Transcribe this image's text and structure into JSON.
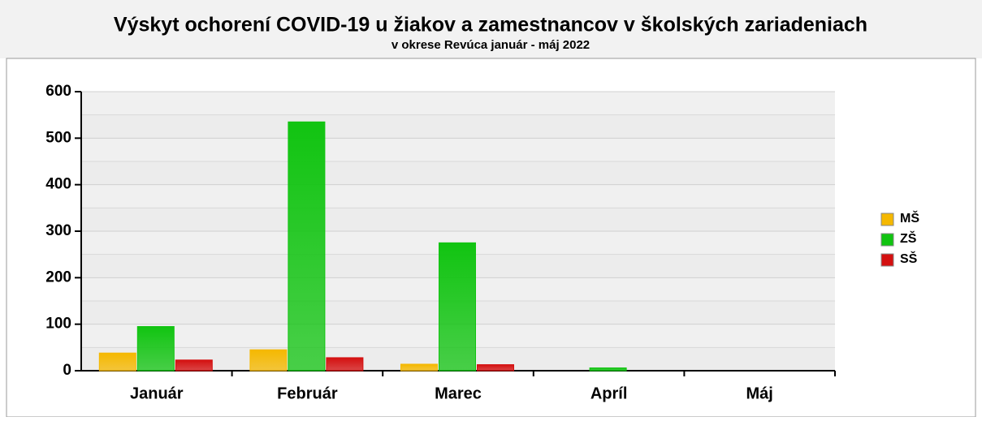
{
  "chart_data": {
    "type": "bar",
    "title": "Výskyt ochorení COVID-19 u žiakov a zamestnancov v školských zariadeniach",
    "subtitle": "v okrese Revúca január - máj 2022",
    "categories": [
      "Január",
      "Február",
      "Marec",
      "Apríl",
      "Máj"
    ],
    "series": [
      {
        "name": "MŠ",
        "color": "#f5b800",
        "values": [
          38,
          45,
          14,
          0,
          0
        ]
      },
      {
        "name": "ZŠ",
        "color": "#11c411",
        "values": [
          95,
          535,
          275,
          6,
          0
        ]
      },
      {
        "name": "SŠ",
        "color": "#d41010",
        "values": [
          23,
          28,
          13,
          0,
          0
        ]
      }
    ],
    "ylim": [
      0,
      600
    ],
    "yticks": [
      0,
      100,
      200,
      300,
      400,
      500,
      600
    ],
    "grid": true,
    "legend": "right"
  }
}
